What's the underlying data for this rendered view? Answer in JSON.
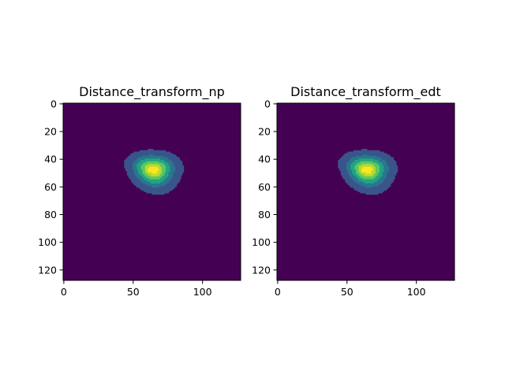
{
  "chart_data": [
    {
      "type": "heatmap",
      "title": "Distance_transform_np",
      "xlabel": "",
      "ylabel": "",
      "image_shape": [
        128,
        128
      ],
      "xlim": [
        -0.5,
        127.5
      ],
      "ylim": [
        127.5,
        -0.5
      ],
      "x_ticks": [
        0,
        50,
        100
      ],
      "y_ticks": [
        0,
        20,
        40,
        60,
        80,
        100,
        120
      ],
      "colormap": "viridis",
      "grid": false,
      "region": {
        "x_range": [
          45,
          87
        ],
        "y_range": [
          32,
          63
        ],
        "peak": [
          62,
          48
        ]
      },
      "levels": [
        {
          "value": 0,
          "color": "#440154"
        },
        {
          "value": 1,
          "color": "#39568c"
        },
        {
          "value": 2,
          "color": "#2a788e"
        },
        {
          "value": 3,
          "color": "#21a585"
        },
        {
          "value": 4,
          "color": "#5ec962"
        },
        {
          "value": 5,
          "color": "#b5de2b"
        },
        {
          "value": 6,
          "color": "#fde725"
        }
      ]
    },
    {
      "type": "heatmap",
      "title": "Distance_transform_edt",
      "xlabel": "",
      "ylabel": "",
      "image_shape": [
        128,
        128
      ],
      "xlim": [
        -0.5,
        127.5
      ],
      "ylim": [
        127.5,
        -0.5
      ],
      "x_ticks": [
        0,
        50,
        100
      ],
      "y_ticks": [
        0,
        20,
        40,
        60,
        80,
        100,
        120
      ],
      "colormap": "viridis",
      "grid": false,
      "region": {
        "x_range": [
          45,
          87
        ],
        "y_range": [
          32,
          63
        ],
        "peak": [
          62,
          48
        ]
      },
      "levels": [
        {
          "value": 0,
          "color": "#440154"
        },
        {
          "value": 1,
          "color": "#39568c"
        },
        {
          "value": 2,
          "color": "#2a788e"
        },
        {
          "value": 3,
          "color": "#21a585"
        },
        {
          "value": 4,
          "color": "#5ec962"
        },
        {
          "value": 5,
          "color": "#b5de2b"
        },
        {
          "value": 6,
          "color": "#fde725"
        }
      ]
    }
  ]
}
